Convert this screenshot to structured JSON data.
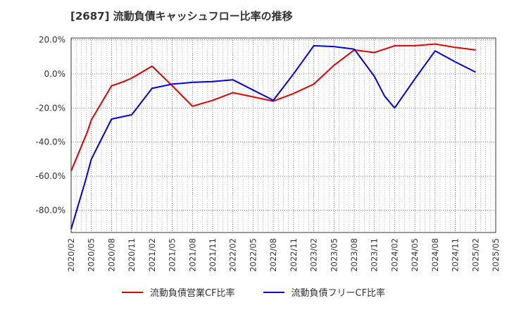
{
  "chart_data": {
    "type": "line",
    "title": "[2687]  流動負債キャッシュフロー比率の推移",
    "xlabel": "",
    "ylabel": "",
    "ylim": [
      -93,
      21
    ],
    "yticks": [
      20,
      0,
      -20,
      -40,
      -60,
      -80
    ],
    "ytick_labels": [
      "20.0%",
      "0.0%",
      "-20.0%",
      "-40.0%",
      "-60.0%",
      "-80.0%"
    ],
    "x_tick_labels": [
      "2020/02",
      "2020/05",
      "2020/08",
      "2020/11",
      "2021/02",
      "2021/05",
      "2021/08",
      "2021/11",
      "2022/02",
      "2022/05",
      "2022/08",
      "2022/11",
      "2023/02",
      "2023/05",
      "2023/08",
      "2023/11",
      "2024/02",
      "2024/05",
      "2024/08",
      "2024/11",
      "2025/02",
      "2025/05"
    ],
    "grid": true,
    "legend_position": "bottom",
    "series": [
      {
        "name": "流動負債営業CF比率",
        "color": "#e00000",
        "points": [
          [
            0,
            -57
          ],
          [
            0.8,
            -34
          ],
          [
            1,
            -27
          ],
          [
            2,
            -7
          ],
          [
            2.5,
            -5
          ],
          [
            3,
            -2.5
          ],
          [
            4,
            4.5
          ],
          [
            5,
            -7
          ],
          [
            6,
            -19
          ],
          [
            7,
            -15.5
          ],
          [
            8,
            -11
          ],
          [
            9,
            -13.5
          ],
          [
            10,
            -16
          ],
          [
            11,
            -11.5
          ],
          [
            12,
            -6
          ],
          [
            13,
            5
          ],
          [
            14,
            14
          ],
          [
            15,
            12.5
          ],
          [
            16,
            16.5
          ],
          [
            17,
            16.5
          ],
          [
            18,
            17.5
          ],
          [
            19,
            15.5
          ],
          [
            20,
            14
          ]
        ]
      },
      {
        "name": "流動負債フリーCF比率",
        "color": "#0000e0",
        "points": [
          [
            0,
            -91
          ],
          [
            0.7,
            -63
          ],
          [
            1,
            -50
          ],
          [
            2,
            -26.5
          ],
          [
            3,
            -24
          ],
          [
            4,
            -8.5
          ],
          [
            5,
            -6
          ],
          [
            6,
            -5
          ],
          [
            7,
            -4.5
          ],
          [
            8,
            -3.5
          ],
          [
            9,
            -9.5
          ],
          [
            10,
            -15.5
          ],
          [
            11,
            0
          ],
          [
            12,
            16.5
          ],
          [
            13,
            16
          ],
          [
            14,
            14.5
          ],
          [
            15,
            -1.5
          ],
          [
            15.5,
            -13
          ],
          [
            16,
            -20
          ],
          [
            17,
            -3
          ],
          [
            18,
            13.5
          ],
          [
            19,
            7
          ],
          [
            20,
            1
          ]
        ]
      }
    ]
  }
}
